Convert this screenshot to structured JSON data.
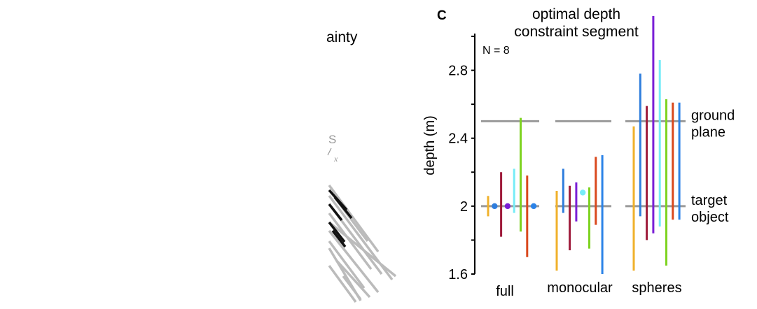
{
  "left_fragment": {
    "title_fragment": "ainty",
    "s_fragment": "S",
    "sub_fragment": "x"
  },
  "chart_data": {
    "type": "range",
    "panel_label": "C",
    "title": [
      "optimal depth",
      "constraint segment"
    ],
    "annotation": "N = 8",
    "ylabel": "depth (m)",
    "ylim": [
      1.6,
      3.0
    ],
    "yticks": [
      1.6,
      2.0,
      2.4,
      2.8
    ],
    "ytick_labels": [
      "1.6",
      "2",
      "2.4",
      "2.8"
    ],
    "categories": [
      "full",
      "monocular",
      "spheres"
    ],
    "reference_lines": [
      {
        "value": 2.5,
        "label": [
          "ground",
          "plane"
        ]
      },
      {
        "value": 2.0,
        "label": [
          "target",
          "object"
        ]
      }
    ],
    "colors": [
      "#f0b12b",
      "#9e1a3a",
      "#2e7ddd",
      "#7a1fd6",
      "#76ecf7",
      "#7ed321",
      "#d9481c",
      "#2b83e8"
    ],
    "groups": [
      {
        "category": "full",
        "segments": [
          {
            "color": "#f0b12b",
            "low": 1.94,
            "high": 2.06
          },
          {
            "color": "#2e7ddd",
            "point": 2.0
          },
          {
            "color": "#9e1a3a",
            "low": 1.82,
            "high": 2.2
          },
          {
            "color": "#7a1fd6",
            "point": 2.0
          },
          {
            "color": "#76ecf7",
            "low": 1.96,
            "high": 2.22
          },
          {
            "color": "#7ed321",
            "low": 1.85,
            "high": 2.52
          },
          {
            "color": "#d9481c",
            "low": 1.7,
            "high": 2.18
          },
          {
            "color": "#2b83e8",
            "point": 2.0
          }
        ]
      },
      {
        "category": "monocular",
        "segments": [
          {
            "color": "#f0b12b",
            "low": 1.62,
            "high": 2.09
          },
          {
            "color": "#2e7ddd",
            "low": 1.96,
            "high": 2.22
          },
          {
            "color": "#9e1a3a",
            "low": 1.74,
            "high": 2.12
          },
          {
            "color": "#7a1fd6",
            "low": 1.91,
            "high": 2.14
          },
          {
            "color": "#76ecf7",
            "point": 2.08
          },
          {
            "color": "#7ed321",
            "low": 1.75,
            "high": 2.11
          },
          {
            "color": "#d9481c",
            "low": 1.89,
            "high": 2.29
          },
          {
            "color": "#2b83e8",
            "low": 1.6,
            "high": 2.3
          }
        ]
      },
      {
        "category": "spheres",
        "segments": [
          {
            "color": "#f0b12b",
            "low": 1.62,
            "high": 2.47
          },
          {
            "color": "#2e7ddd",
            "low": 1.94,
            "high": 2.78
          },
          {
            "color": "#9e1a3a",
            "low": 1.8,
            "high": 2.59
          },
          {
            "color": "#7a1fd6",
            "low": 1.84,
            "high": 3.12
          },
          {
            "color": "#76ecf7",
            "low": 1.88,
            "high": 2.86
          },
          {
            "color": "#7ed321",
            "low": 1.65,
            "high": 2.63
          },
          {
            "color": "#d9481c",
            "low": 1.92,
            "high": 2.61
          },
          {
            "color": "#2b83e8",
            "low": 1.92,
            "high": 2.61
          }
        ]
      }
    ]
  }
}
